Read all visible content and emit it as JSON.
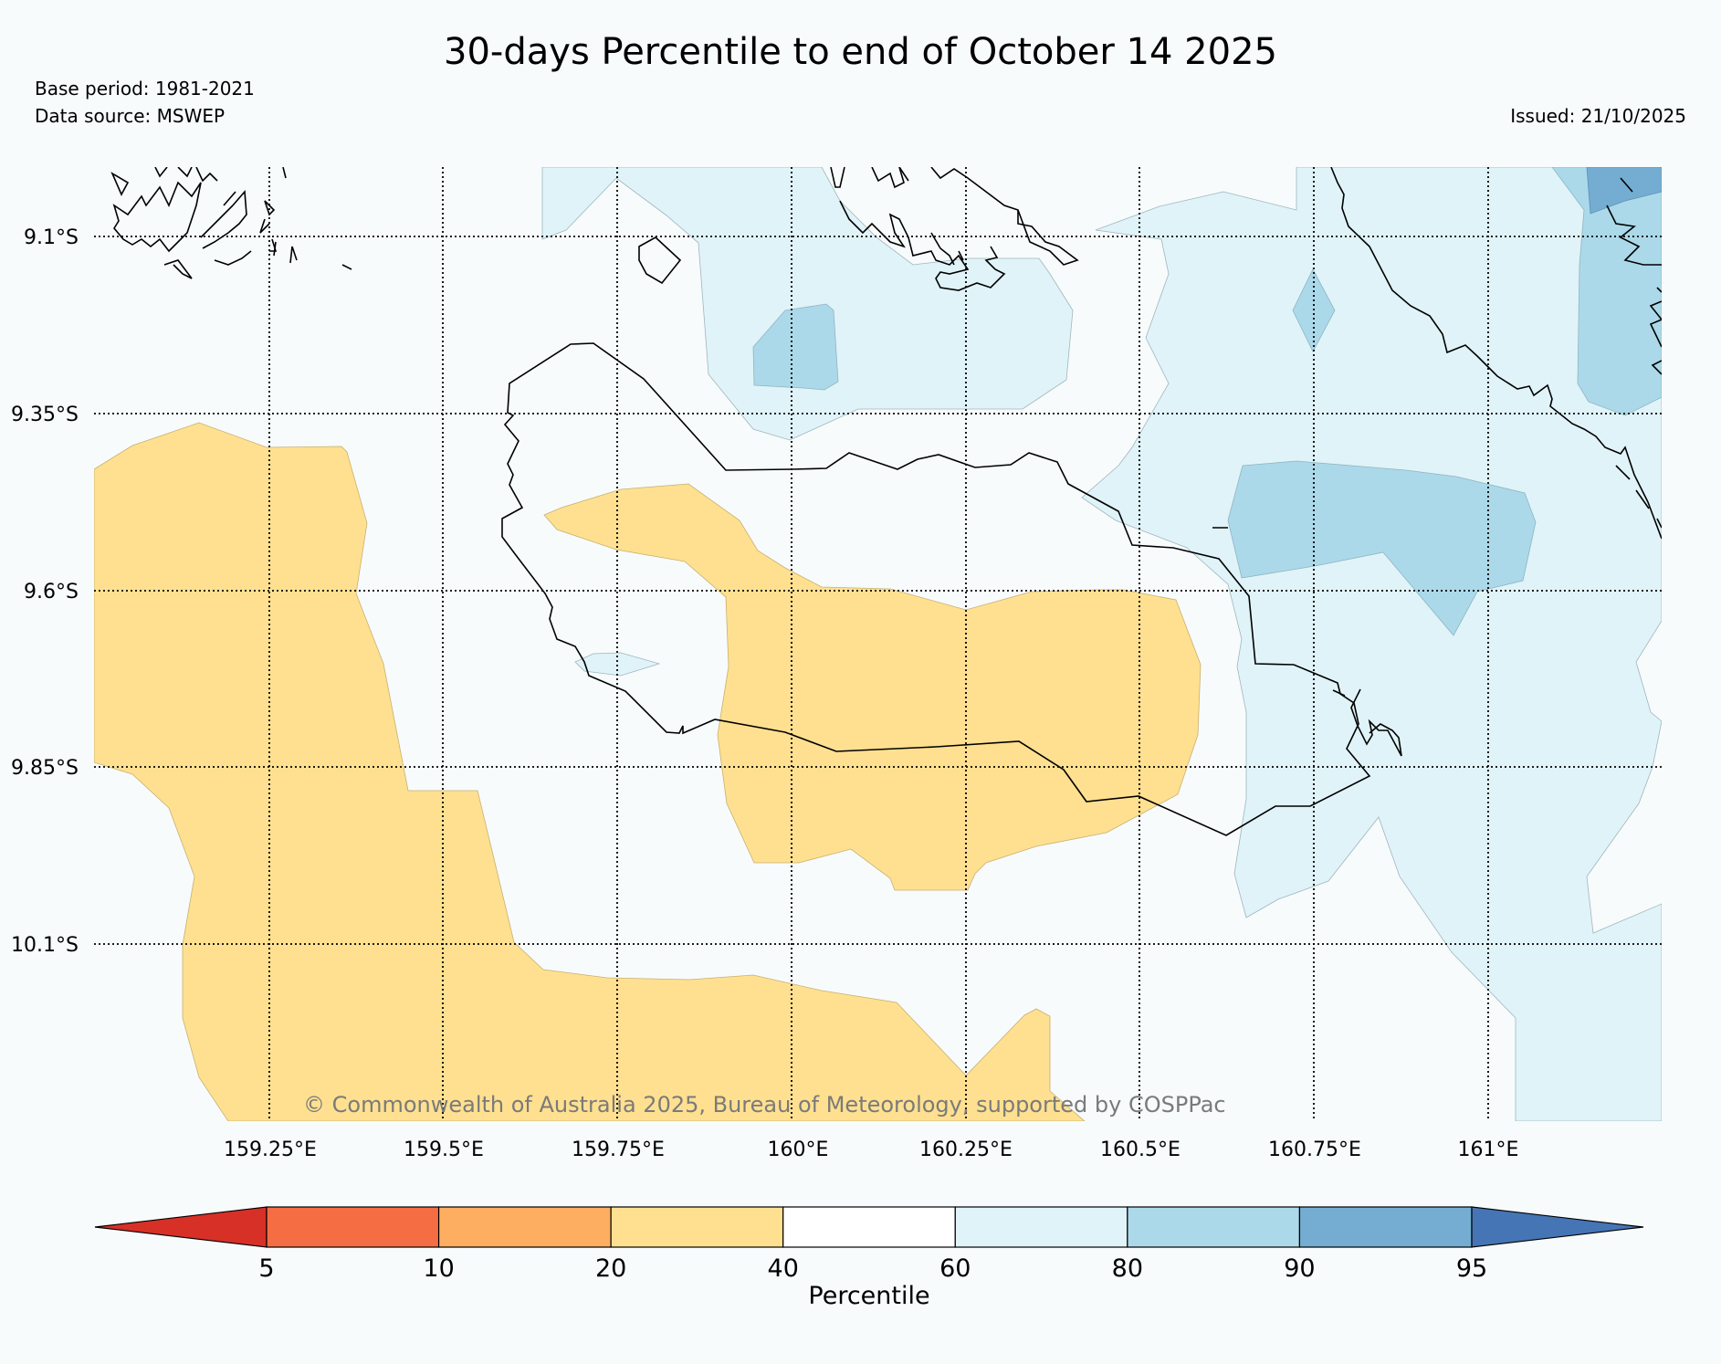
{
  "title": "30-days Percentile to end of October 14 2025",
  "base_period": "Base period: 1981-2021",
  "data_source": "Data source: MSWEP",
  "issued": "Issued: 21/10/2025",
  "copyright": "© Commonwealth of Australia 2025, Bureau of Meteorology, supported by COSPPac",
  "lat_labels": [
    "9.1°S",
    "9.35°S",
    "9.6°S",
    "9.85°S",
    "10.1°S"
  ],
  "lon_labels": [
    "159.25°E",
    "159.5°E",
    "159.75°E",
    "160°E",
    "160.25°E",
    "160.5°E",
    "160.75°E",
    "161°E"
  ],
  "colorbar": {
    "label": "Percentile",
    "ticks": [
      "5",
      "10",
      "20",
      "40",
      "60",
      "80",
      "90",
      "95"
    ],
    "colors": [
      "#d73027",
      "#f46d43",
      "#fdae61",
      "#fee090",
      "#ffffff",
      "#e0f3f8",
      "#abd9e9",
      "#74add1",
      "#4575b4"
    ]
  },
  "colors": {
    "below_normal_20_40": "#fee090",
    "normal_40_60": "#f7fbfc",
    "above_60_80": "#e0f3f8",
    "above_80_90": "#abd9e9",
    "above_90_95": "#74add1"
  }
}
